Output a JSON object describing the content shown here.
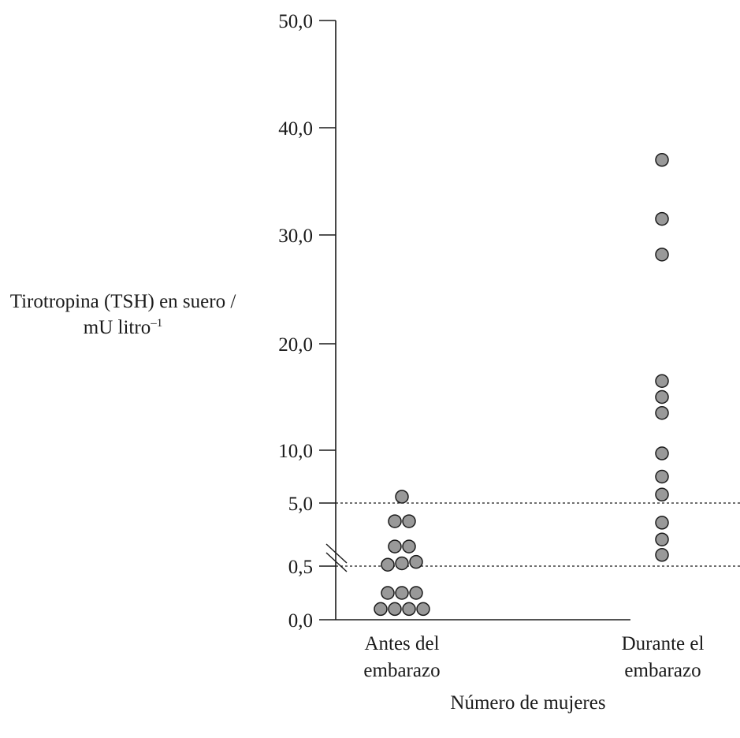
{
  "chart_data": {
    "type": "scatter",
    "ylabel_main": "Tirotropina (TSH) en suero / mU litro",
    "ylabel_unit_superscript": "–1",
    "xlabel": "Número de mujeres",
    "y_ticks": [
      "0,0",
      "0,5",
      "5,0",
      "10,0",
      "20,0",
      "30,0",
      "40,0",
      "50,0"
    ],
    "y_axis_break_between": [
      "0,5",
      "5,0"
    ],
    "reference_lines": [
      0.5,
      5.0
    ],
    "categories": [
      {
        "line1": "Antes del",
        "line2": "embarazo"
      },
      {
        "line1": "Durante el",
        "line2": "embarazo"
      }
    ],
    "series": [
      {
        "values": [
          0.1,
          0.1,
          0.1,
          0.1,
          0.25,
          0.25,
          0.25,
          0.6,
          0.7,
          0.8,
          1.9,
          1.9,
          3.7,
          3.7,
          5.6
        ]
      },
      {
        "values": [
          1.3,
          2.4,
          3.6,
          5.8,
          7.5,
          9.7,
          13.5,
          15.0,
          16.5,
          28.2,
          31.5,
          37.0
        ]
      }
    ],
    "legend": "none",
    "grid": false,
    "colors": {
      "marker_fill": "#999999",
      "marker_stroke": "#1a1a1a",
      "axis": "#1a1a1a"
    }
  }
}
